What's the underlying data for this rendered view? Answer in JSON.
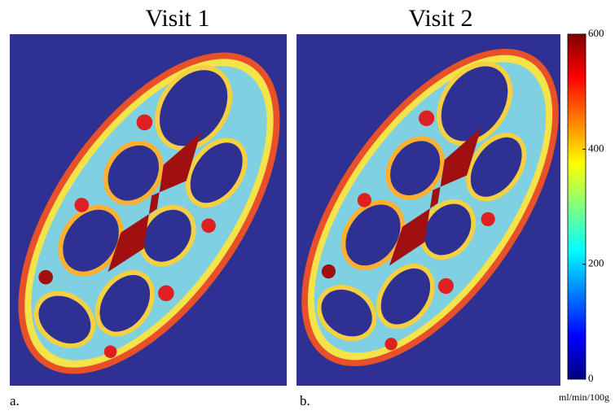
{
  "panels": [
    {
      "title": "Visit 1",
      "label": "a."
    },
    {
      "title": "Visit 2",
      "label": "b."
    }
  ],
  "colorbar": {
    "range": [
      0,
      600
    ],
    "ticks": [
      0,
      200,
      400,
      600
    ],
    "unit": "ml/min/100g"
  }
}
